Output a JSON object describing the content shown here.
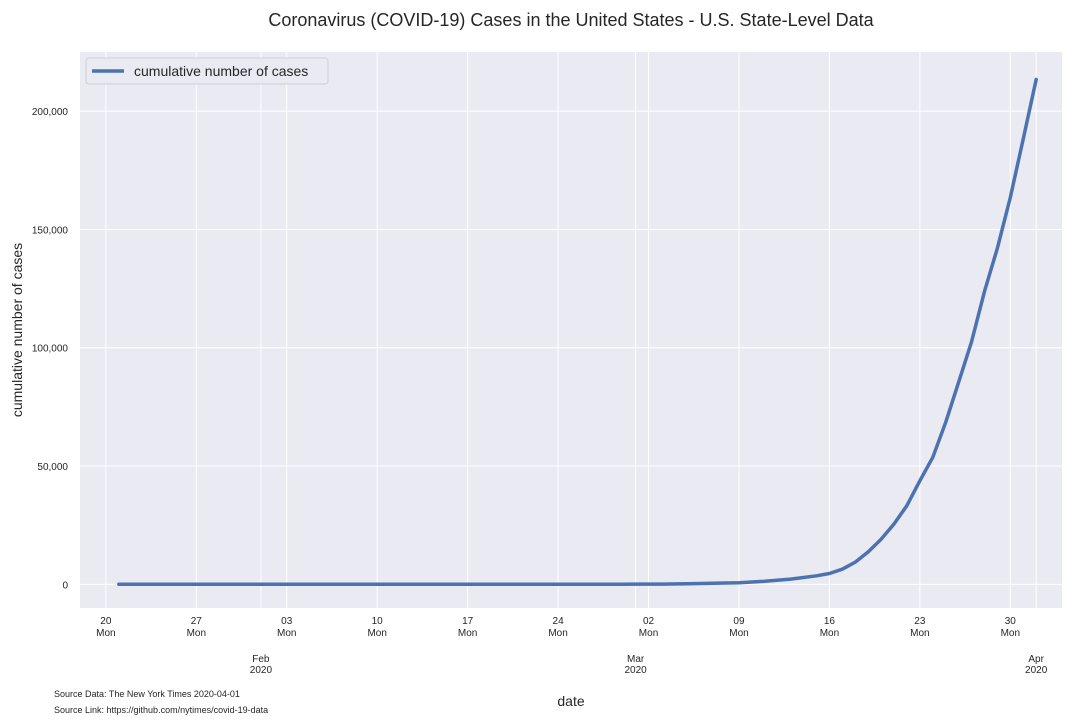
{
  "chart_data": {
    "type": "line",
    "title": "Coronavirus (COVID-19) Cases in the United States -  U.S. State-Level Data",
    "xlabel": "date",
    "ylabel": "cumulative number of cases",
    "x_range": [
      "2020-01-18",
      "2020-04-03"
    ],
    "ylim": [
      -10000,
      225000
    ],
    "grid": true,
    "legend": "top-left",
    "x_ticks": [
      {
        "date": "2020-01-20",
        "day": "20",
        "weekday": "Mon"
      },
      {
        "date": "2020-01-27",
        "day": "27",
        "weekday": "Mon"
      },
      {
        "date": "2020-02-03",
        "day": "03",
        "weekday": "Mon"
      },
      {
        "date": "2020-02-10",
        "day": "10",
        "weekday": "Mon"
      },
      {
        "date": "2020-02-17",
        "day": "17",
        "weekday": "Mon"
      },
      {
        "date": "2020-02-24",
        "day": "24",
        "weekday": "Mon"
      },
      {
        "date": "2020-03-02",
        "day": "02",
        "weekday": "Mon"
      },
      {
        "date": "2020-03-09",
        "day": "09",
        "weekday": "Mon"
      },
      {
        "date": "2020-03-16",
        "day": "16",
        "weekday": "Mon"
      },
      {
        "date": "2020-03-23",
        "day": "23",
        "weekday": "Mon"
      },
      {
        "date": "2020-03-30",
        "day": "30",
        "weekday": "Mon"
      }
    ],
    "x_month_ticks": [
      {
        "date": "2020-02-01",
        "month": "Feb",
        "year": "2020"
      },
      {
        "date": "2020-03-01",
        "month": "Mar",
        "year": "2020"
      },
      {
        "date": "2020-04-01",
        "month": "Apr",
        "year": "2020"
      }
    ],
    "y_ticks": [
      {
        "value": 0,
        "label": "0"
      },
      {
        "value": 50000,
        "label": "50,000"
      },
      {
        "value": 100000,
        "label": "100,000"
      },
      {
        "value": 150000,
        "label": "150,000"
      },
      {
        "value": 200000,
        "label": "200,000"
      }
    ],
    "series": [
      {
        "name": "cumulative number of cases",
        "color": "#4c72b0",
        "x": [
          "2020-01-21",
          "2020-01-26",
          "2020-01-31",
          "2020-02-05",
          "2020-02-10",
          "2020-02-15",
          "2020-02-20",
          "2020-02-25",
          "2020-02-29",
          "2020-03-03",
          "2020-03-05",
          "2020-03-07",
          "2020-03-09",
          "2020-03-11",
          "2020-03-13",
          "2020-03-15",
          "2020-03-16",
          "2020-03-17",
          "2020-03-18",
          "2020-03-19",
          "2020-03-20",
          "2020-03-21",
          "2020-03-22",
          "2020-03-23",
          "2020-03-24",
          "2020-03-25",
          "2020-03-26",
          "2020-03-27",
          "2020-03-28",
          "2020-03-29",
          "2020-03-30",
          "2020-03-31",
          "2020-04-01"
        ],
        "values": [
          1,
          5,
          7,
          12,
          13,
          15,
          15,
          53,
          70,
          120,
          230,
          430,
          700,
          1300,
          2200,
          3600,
          4600,
          6400,
          9400,
          13700,
          19100,
          25500,
          33300,
          43800,
          53700,
          68500,
          85400,
          102600,
          123800,
          142100,
          163500,
          188200,
          213400
        ]
      }
    ],
    "footnotes": [
      "Source Data: The New York Times 2020-04-01",
      "Source Link: https://github.com/nytimes/covid-19-data"
    ]
  }
}
